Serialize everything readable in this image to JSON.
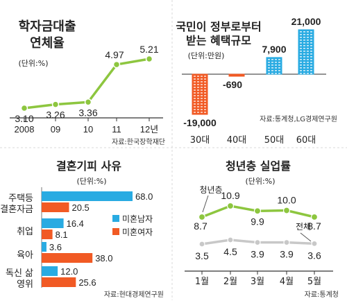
{
  "chart_data": [
    {
      "type": "line",
      "title": "학자금대출\n연체율",
      "unit": "(단위:%)",
      "categories": [
        "2008",
        "09",
        "10",
        "11",
        "12년"
      ],
      "values": [
        3.1,
        3.26,
        3.36,
        4.97,
        5.21
      ],
      "value_labels": [
        "3.10",
        "3.26",
        "3.36",
        "4.97",
        "5.21"
      ],
      "source": "자료:한국장학재단",
      "color": "#8dc63f"
    },
    {
      "type": "bar",
      "title": "국민이 정부로부터\n받는 혜택규모",
      "unit": "(단위:만원)",
      "categories": [
        "30대",
        "40대",
        "50대",
        "60대"
      ],
      "values": [
        -19000,
        -690,
        7900,
        21000
      ],
      "value_labels": [
        "-19,000",
        "-690",
        "7,900",
        "21,000"
      ],
      "source": "자료:통계청,LG경제연구원",
      "colors": {
        "negative": "#f15a24",
        "positive": "#29abe2"
      }
    },
    {
      "type": "bar",
      "orientation": "horizontal",
      "title": "결혼기피 사유",
      "unit": "(단위:%)",
      "categories": [
        "주택등\n결혼자금",
        "취업",
        "육아",
        "독신 삶\n영위"
      ],
      "series": [
        {
          "name": "미혼남자",
          "values": [
            68.0,
            16.4,
            3.6,
            12.0
          ],
          "color": "#29abe2"
        },
        {
          "name": "미혼여자",
          "values": [
            20.5,
            8.1,
            38.0,
            25.6
          ],
          "color": "#f15a24"
        }
      ],
      "value_labels": {
        "미혼남자": [
          "68.0",
          "16.4",
          "3.6",
          "12.0"
        ],
        "미혼여자": [
          "20.5",
          "8.1",
          "38.0",
          "25.6"
        ]
      },
      "source": "자료:현대경제연구원"
    },
    {
      "type": "line",
      "title": "청년층 실업률",
      "unit": "(단위:%)",
      "categories": [
        "1월",
        "2월",
        "3월",
        "4월",
        "5월"
      ],
      "series": [
        {
          "name": "청년층",
          "values": [
            8.7,
            10.9,
            9.9,
            10.0,
            8.7
          ],
          "labels": [
            "8.7",
            "10.9",
            "9.9",
            "10.0",
            "8.7"
          ],
          "color": "#8dc63f"
        },
        {
          "name": "전체",
          "values": [
            3.5,
            4.5,
            3.9,
            3.9,
            3.6
          ],
          "labels": [
            "3.5",
            "4.5",
            "3.9",
            "3.9",
            "3.6"
          ],
          "color": "#c8c8c8"
        }
      ],
      "source": "자료:통계청"
    }
  ]
}
